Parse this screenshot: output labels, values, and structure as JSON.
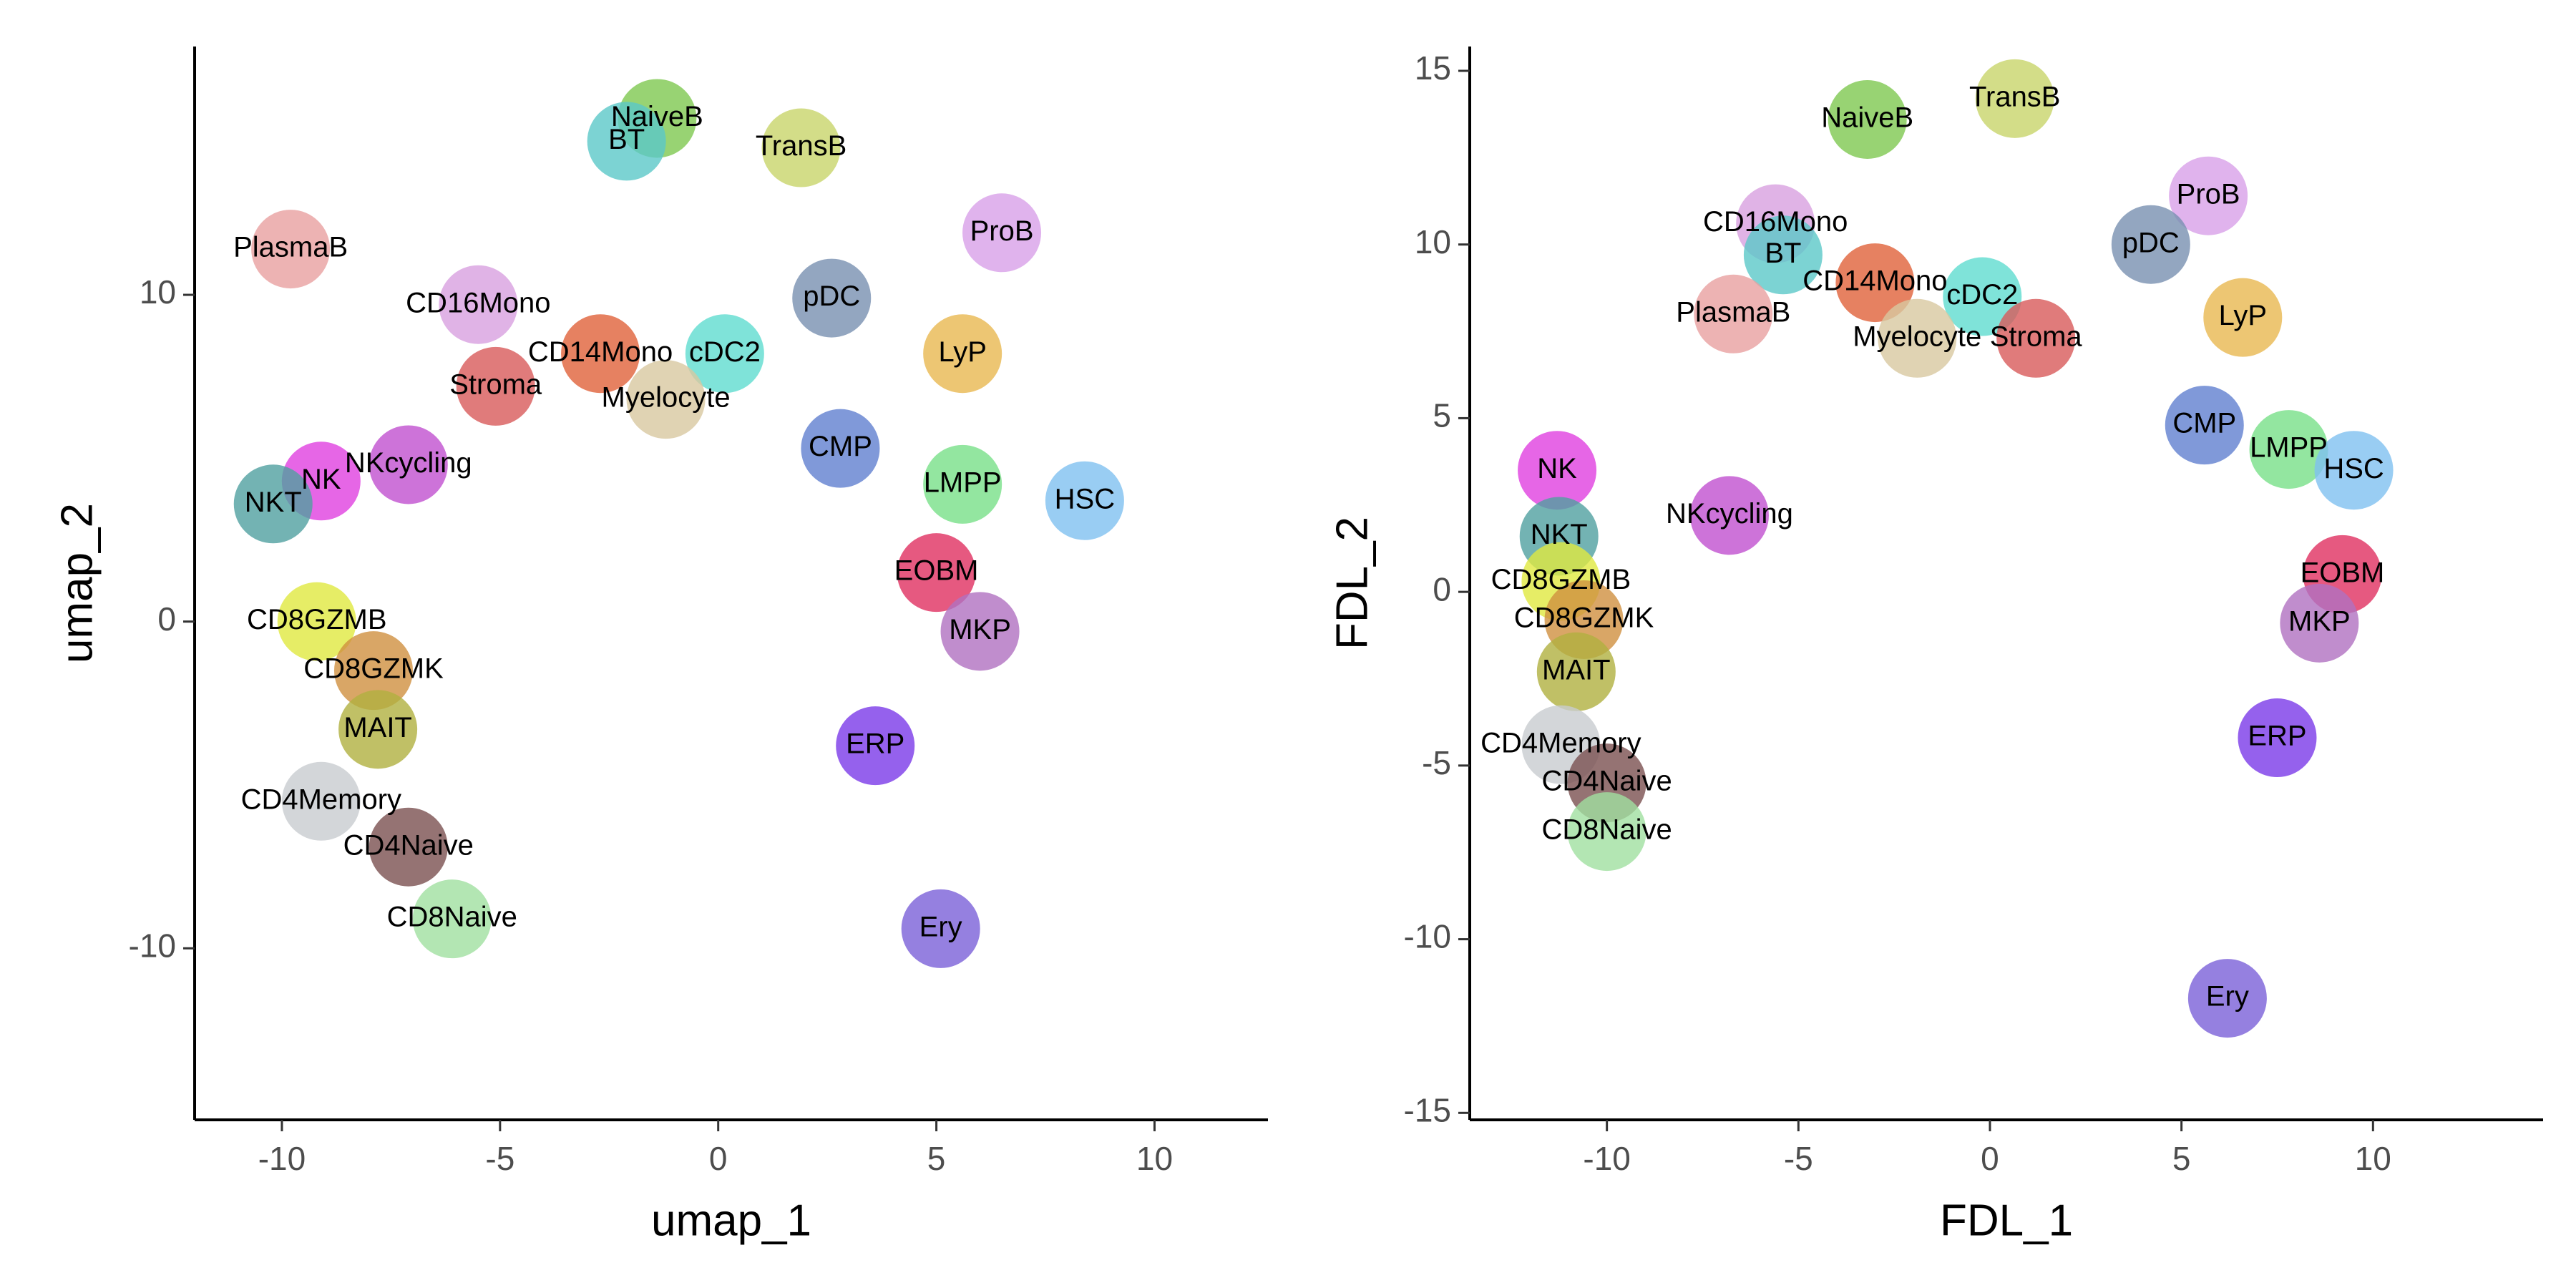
{
  "chart_data": [
    {
      "type": "scatter",
      "xlabel": "umap_1",
      "ylabel": "umap_2",
      "xlim": [
        -12,
        12.6
      ],
      "ylim": [
        -15.25,
        17.6
      ],
      "xticks": [
        -10,
        -5,
        0,
        5,
        10
      ],
      "yticks": [
        -10,
        0,
        10
      ],
      "series": [
        {
          "name": "PlasmaB",
          "color": "#e8a0a0",
          "x": [
            -9.8
          ],
          "values": [
            11.4
          ]
        },
        {
          "name": "NaiveB",
          "color": "#7ec850",
          "x": [
            -1.4
          ],
          "values": [
            15.4
          ]
        },
        {
          "name": "BT",
          "color": "#5bc8c8",
          "x": [
            -2.1
          ],
          "values": [
            14.7
          ]
        },
        {
          "name": "TransB",
          "color": "#c8d46a",
          "x": [
            1.9
          ],
          "values": [
            14.5
          ]
        },
        {
          "name": "CD16Mono",
          "color": "#d8a0e0",
          "x": [
            -5.5
          ],
          "values": [
            9.7
          ]
        },
        {
          "name": "CD14Mono",
          "color": "#e0623a",
          "x": [
            -2.7
          ],
          "values": [
            8.2
          ]
        },
        {
          "name": "cDC2",
          "color": "#5fdcd0",
          "x": [
            0.15
          ],
          "values": [
            8.2
          ]
        },
        {
          "name": "Stroma",
          "color": "#d85a5a",
          "x": [
            -5.1
          ],
          "values": [
            7.2
          ]
        },
        {
          "name": "Myelocyte",
          "color": "#d8c8a0",
          "x": [
            -1.2
          ],
          "values": [
            6.8
          ]
        },
        {
          "name": "pDC",
          "color": "#7890b0",
          "x": [
            2.6
          ],
          "values": [
            9.9
          ]
        },
        {
          "name": "ProB",
          "color": "#d8a0e8",
          "x": [
            6.5
          ],
          "values": [
            11.9
          ]
        },
        {
          "name": "LyP",
          "color": "#e8b850",
          "x": [
            5.6
          ],
          "values": [
            8.2
          ]
        },
        {
          "name": "CMP",
          "color": "#6080d0",
          "x": [
            2.8
          ],
          "values": [
            5.3
          ]
        },
        {
          "name": "LMPP",
          "color": "#78e088",
          "x": [
            5.6
          ],
          "values": [
            4.2
          ]
        },
        {
          "name": "HSC",
          "color": "#80c0f0",
          "x": [
            8.4
          ],
          "values": [
            3.7
          ]
        },
        {
          "name": "EOBM",
          "color": "#e03060",
          "x": [
            5.0
          ],
          "values": [
            1.5
          ]
        },
        {
          "name": "MKP",
          "color": "#b070c0",
          "x": [
            6.0
          ],
          "values": [
            -0.3
          ]
        },
        {
          "name": "ERP",
          "color": "#7b3ae8",
          "x": [
            3.6
          ],
          "values": [
            -3.8
          ]
        },
        {
          "name": "Ery",
          "color": "#7a60d8",
          "x": [
            5.1
          ],
          "values": [
            -9.4
          ]
        },
        {
          "name": "NKcycling",
          "color": "#c050d0",
          "x": [
            -7.1
          ],
          "values": [
            4.8
          ]
        },
        {
          "name": "NK",
          "color": "#e040e0",
          "x": [
            -9.1
          ],
          "values": [
            4.3
          ]
        },
        {
          "name": "NKT",
          "color": "#50a0a0",
          "x": [
            -10.2
          ],
          "values": [
            3.6
          ]
        },
        {
          "name": "CD8GZMB",
          "color": "#e0e840",
          "x": [
            -9.2
          ],
          "values": [
            0
          ]
        },
        {
          "name": "CD8GZMK",
          "color": "#d09040",
          "x": [
            -7.9
          ],
          "values": [
            -1.5
          ]
        },
        {
          "name": "MAIT",
          "color": "#b0b040",
          "x": [
            -7.8
          ],
          "values": [
            -3.3
          ]
        },
        {
          "name": "CD4Memory",
          "color": "#c8ccd0",
          "x": [
            -9.1
          ],
          "values": [
            -5.5
          ]
        },
        {
          "name": "CD4Naive",
          "color": "#7a5050",
          "x": [
            -7.1
          ],
          "values": [
            -6.9
          ]
        },
        {
          "name": "CD8Naive",
          "color": "#a0e0a0",
          "x": [
            -6.1
          ],
          "values": [
            -9.1
          ]
        }
      ]
    },
    {
      "type": "scatter",
      "xlabel": "FDL_1",
      "ylabel": "FDL_2",
      "xlim": [
        -13.58,
        14.44
      ],
      "ylim": [
        -15.2,
        15.7
      ],
      "xticks": [
        -10,
        -5,
        0,
        5,
        10
      ],
      "yticks": [
        -15,
        -10,
        -5,
        0,
        5,
        10,
        15
      ],
      "series": [
        {
          "name": "TransB",
          "color": "#c8d46a",
          "x": [
            0.65
          ],
          "values": [
            14.2
          ]
        },
        {
          "name": "NaiveB",
          "color": "#7ec850",
          "x": [
            -3.2
          ],
          "values": [
            13.6
          ]
        },
        {
          "name": "CD16Mono",
          "color": "#d8a0e0",
          "x": [
            -5.6
          ],
          "values": [
            10.6
          ]
        },
        {
          "name": "ProB",
          "color": "#d8a0e8",
          "x": [
            5.7
          ],
          "values": [
            11.4
          ]
        },
        {
          "name": "BT",
          "color": "#5bc8c8",
          "x": [
            -5.4
          ],
          "values": [
            9.7
          ]
        },
        {
          "name": "pDC",
          "color": "#7890b0",
          "x": [
            4.2
          ],
          "values": [
            10.0
          ]
        },
        {
          "name": "CD14Mono",
          "color": "#e0623a",
          "x": [
            -3.0
          ],
          "values": [
            8.9
          ]
        },
        {
          "name": "cDC2",
          "color": "#5fdcd0",
          "x": [
            -0.2
          ],
          "values": [
            8.5
          ]
        },
        {
          "name": "PlasmaB",
          "color": "#e8a0a0",
          "x": [
            -6.7
          ],
          "values": [
            8.0
          ]
        },
        {
          "name": "LyP",
          "color": "#e8b850",
          "x": [
            6.6
          ],
          "values": [
            7.9
          ]
        },
        {
          "name": "Myelocyte",
          "color": "#d8c8a0",
          "x": [
            -1.9
          ],
          "values": [
            7.3
          ]
        },
        {
          "name": "Stroma",
          "color": "#d85a5a",
          "x": [
            1.2
          ],
          "values": [
            7.3
          ]
        },
        {
          "name": "CMP",
          "color": "#6080d0",
          "x": [
            5.6
          ],
          "values": [
            4.8
          ]
        },
        {
          "name": "LMPP",
          "color": "#78e088",
          "x": [
            7.8
          ],
          "values": [
            4.1
          ]
        },
        {
          "name": "HSC",
          "color": "#80c0f0",
          "x": [
            9.5
          ],
          "values": [
            3.5
          ]
        },
        {
          "name": "NK",
          "color": "#e040e0",
          "x": [
            -11.3
          ],
          "values": [
            3.5
          ]
        },
        {
          "name": "NKcycling",
          "color": "#c050d0",
          "x": [
            -6.8
          ],
          "values": [
            2.2
          ]
        },
        {
          "name": "NKT",
          "color": "#50a0a0",
          "x": [
            -11.25
          ],
          "values": [
            1.6
          ]
        },
        {
          "name": "CD8GZMB",
          "color": "#e0e840",
          "x": [
            -11.2
          ],
          "values": [
            0.3
          ]
        },
        {
          "name": "EOBM",
          "color": "#e03060",
          "x": [
            9.2
          ],
          "values": [
            0.5
          ]
        },
        {
          "name": "CD8GZMK",
          "color": "#d09040",
          "x": [
            -10.6
          ],
          "values": [
            -0.8
          ]
        },
        {
          "name": "MKP",
          "color": "#b070c0",
          "x": [
            8.6
          ],
          "values": [
            -0.9
          ]
        },
        {
          "name": "MAIT",
          "color": "#b0b040",
          "x": [
            -10.8
          ],
          "values": [
            -2.3
          ]
        },
        {
          "name": "ERP",
          "color": "#7b3ae8",
          "x": [
            7.5
          ],
          "values": [
            -4.2
          ]
        },
        {
          "name": "CD4Memory",
          "color": "#c8ccd0",
          "x": [
            -11.2
          ],
          "values": [
            -4.4
          ]
        },
        {
          "name": "CD4Naive",
          "color": "#7a5050",
          "x": [
            -10.0
          ],
          "values": [
            -5.5
          ]
        },
        {
          "name": "CD8Naive",
          "color": "#a0e0a0",
          "x": [
            -10.0
          ],
          "values": [
            -6.9
          ]
        },
        {
          "name": "Ery",
          "color": "#7a60d8",
          "x": [
            6.2
          ],
          "values": [
            -11.7
          ]
        }
      ]
    }
  ]
}
